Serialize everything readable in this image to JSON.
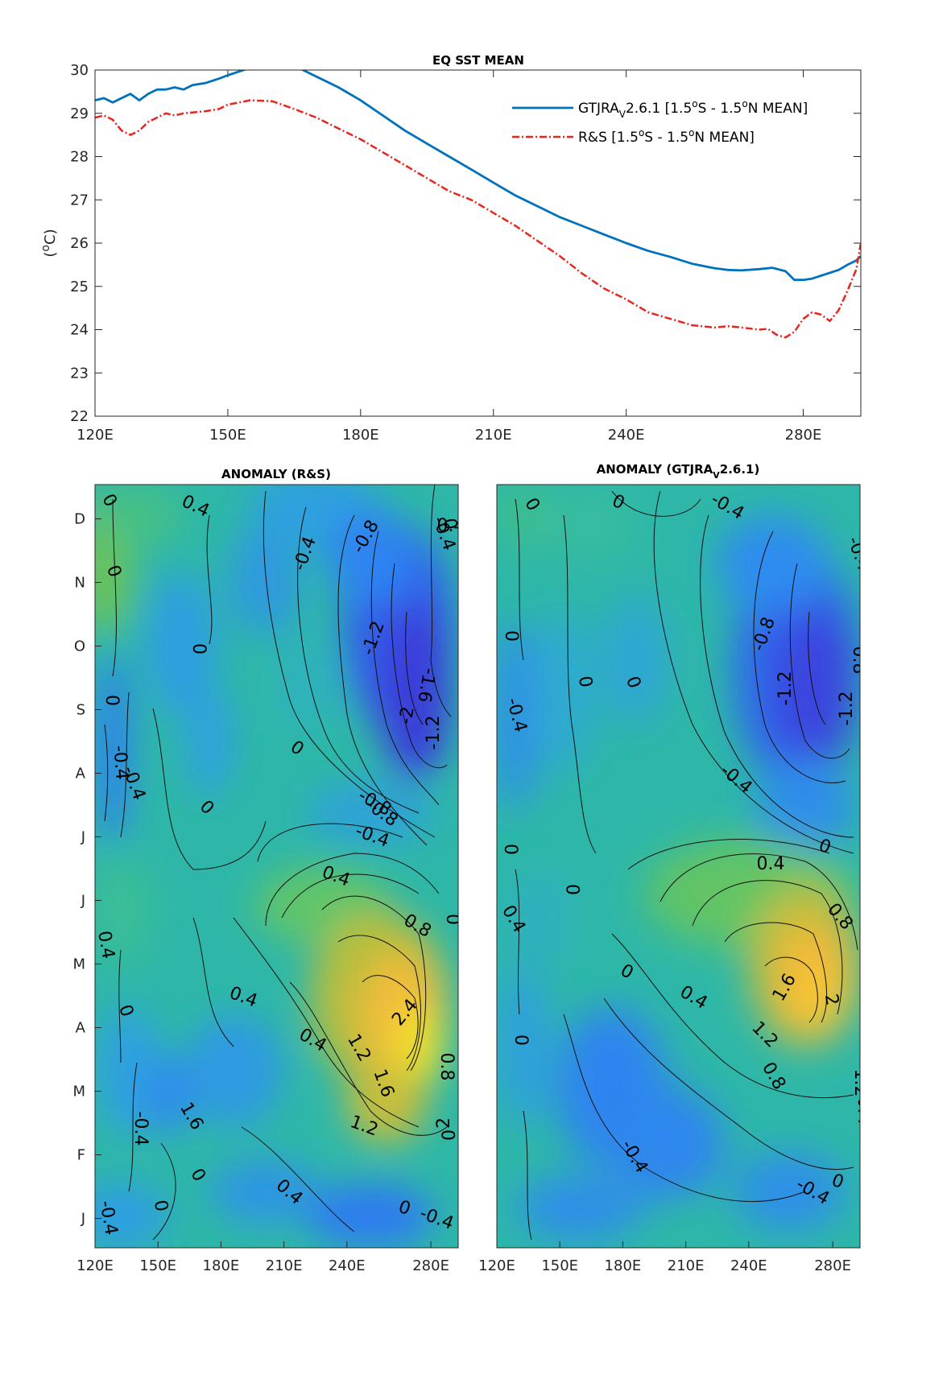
{
  "chart_data": [
    {
      "type": "line",
      "title": "EQ SST MEAN",
      "ylabel_parts": {
        "open": "(",
        "sup": "o",
        "unit": "C",
        "close": ")"
      },
      "xlim": [
        120,
        293
      ],
      "ylim": [
        22,
        30
      ],
      "x_ticks": [
        120,
        150,
        180,
        210,
        240,
        280
      ],
      "x_tick_labels": [
        "120E",
        "150E",
        "180E",
        "210E",
        "240E",
        "280E"
      ],
      "y_ticks": [
        22,
        23,
        24,
        25,
        26,
        27,
        28,
        29,
        30
      ],
      "grid": false,
      "legend_position": "top-right",
      "series": [
        {
          "name": "GTJRA_V2.6.1 [1.5°S - 1.5°N MEAN]",
          "legend_parts": {
            "a": "GTJRA",
            "sub": "V",
            "b": "2.6.1 [1.5",
            "sup1": "o",
            "c": "S - 1.5",
            "sup2": "o",
            "d": "N MEAN]"
          },
          "color": "#0072BD",
          "style": "solid",
          "x": [
            120,
            122,
            124,
            126,
            128,
            130,
            132,
            134,
            136,
            138,
            140,
            142,
            145,
            148,
            150,
            155,
            160,
            165,
            170,
            175,
            180,
            185,
            190,
            195,
            200,
            205,
            210,
            215,
            220,
            225,
            230,
            235,
            240,
            245,
            250,
            255,
            260,
            263,
            266,
            270,
            273,
            276,
            278,
            280,
            282,
            285,
            288,
            290,
            292,
            293
          ],
          "y": [
            29.3,
            29.35,
            29.25,
            29.35,
            29.45,
            29.3,
            29.45,
            29.55,
            29.55,
            29.6,
            29.55,
            29.65,
            29.7,
            29.8,
            29.88,
            30.05,
            30.2,
            30.1,
            29.85,
            29.6,
            29.3,
            28.95,
            28.6,
            28.3,
            28.0,
            27.7,
            27.4,
            27.1,
            26.85,
            26.6,
            26.4,
            26.2,
            26.0,
            25.82,
            25.68,
            25.52,
            25.42,
            25.38,
            25.37,
            25.4,
            25.43,
            25.35,
            25.15,
            25.15,
            25.18,
            25.28,
            25.38,
            25.5,
            25.6,
            25.7
          ]
        },
        {
          "name": "R&S [1.5°S - 1.5°N MEAN]",
          "legend_parts": {
            "a": "R&S [1.5",
            "sup1": "o",
            "b": "S - 1.5",
            "sup2": "o",
            "c": "N MEAN]"
          },
          "color": "#E8261E",
          "style": "dash-dot",
          "x": [
            120,
            122,
            124,
            126,
            128,
            130,
            132,
            134,
            136,
            138,
            140,
            142,
            145,
            148,
            150,
            155,
            160,
            165,
            170,
            175,
            180,
            185,
            190,
            195,
            200,
            205,
            210,
            215,
            220,
            225,
            230,
            235,
            240,
            245,
            250,
            255,
            260,
            263,
            266,
            270,
            272,
            274,
            276,
            278,
            280,
            282,
            284,
            286,
            288,
            290,
            292,
            293
          ],
          "y": [
            28.9,
            28.95,
            28.85,
            28.6,
            28.5,
            28.6,
            28.8,
            28.9,
            29.0,
            28.95,
            29.0,
            29.02,
            29.05,
            29.1,
            29.2,
            29.3,
            29.28,
            29.1,
            28.9,
            28.65,
            28.4,
            28.1,
            27.8,
            27.5,
            27.2,
            27.0,
            26.7,
            26.4,
            26.05,
            25.7,
            25.3,
            24.95,
            24.7,
            24.4,
            24.25,
            24.1,
            24.05,
            24.08,
            24.05,
            24.0,
            24.02,
            23.88,
            23.82,
            23.95,
            24.25,
            24.4,
            24.35,
            24.2,
            24.45,
            24.9,
            25.4,
            26.0
          ]
        }
      ]
    },
    {
      "type": "heatmap",
      "title": "ANOMALY (R&S)",
      "x_ticks": [
        120,
        150,
        180,
        210,
        240,
        280
      ],
      "x_tick_labels": [
        "120E",
        "150E",
        "180E",
        "210E",
        "240E",
        "280E"
      ],
      "y_tick_labels": [
        "J",
        "F",
        "M",
        "A",
        "M",
        "J",
        "J",
        "A",
        "S",
        "O",
        "N",
        "D"
      ],
      "color_scale": [
        "#3E26A8",
        "#2E87F7",
        "#35B7BD",
        "#8CC43F",
        "#FEB83C",
        "#F9FB15"
      ],
      "contour_labels": [
        "0",
        "0.4",
        "0",
        "0",
        "-0.4",
        "-0.8",
        "-0.4",
        "0",
        "0.4",
        "0",
        "-1.2",
        "-1.6",
        "-2",
        "-1.2",
        "0",
        "-0.4",
        "-0.4",
        "0",
        "-0.8",
        "-0.4",
        "-0.8",
        "0.4",
        "0.4",
        "0.8",
        "0",
        "0.4",
        "2.4",
        "0",
        "0.4",
        "1.2",
        "1.6",
        "1.2",
        "0.8",
        "2",
        "-0.4",
        "1.6",
        "0",
        "0.4",
        "0",
        "-0.4",
        "-0.4",
        "0",
        "0"
      ]
    },
    {
      "type": "heatmap",
      "title_parts": {
        "a": "ANOMALY (GTJRA",
        "sub": "V",
        "b": "2.6.1)"
      },
      "x_ticks": [
        120,
        150,
        180,
        210,
        240,
        280
      ],
      "x_tick_labels": [
        "120E",
        "150E",
        "180E",
        "210E",
        "240E",
        "280E"
      ],
      "color_scale": [
        "#3E26A8",
        "#2E87F7",
        "#35B7BD",
        "#8CC43F",
        "#FEB83C",
        "#F9FB15"
      ],
      "contour_labels": [
        "0",
        "0",
        "-0.4",
        "-0.4",
        "0",
        "-0.8",
        "0",
        "0",
        "-1.2",
        "-1.2",
        "-0.4",
        "0.8",
        "-0.4",
        "0",
        "0.4",
        "0",
        "0",
        "0.4",
        "0.8",
        "0",
        "0.4",
        "1.6",
        "2",
        "1.2",
        "0.8",
        "1.2",
        "0.4",
        "0",
        "-0.4",
        "-0.4",
        "0"
      ]
    }
  ]
}
